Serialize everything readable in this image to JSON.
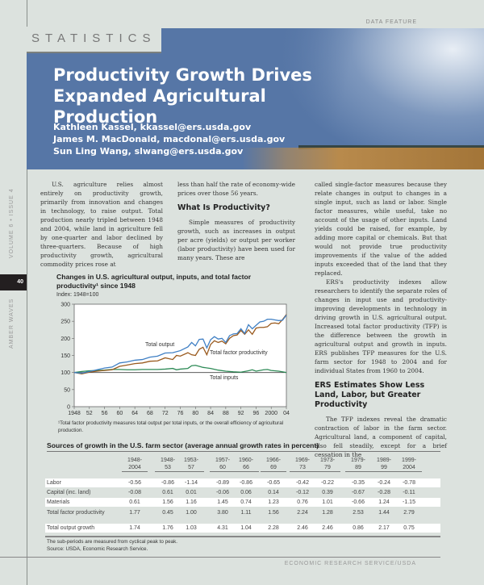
{
  "header": {
    "section": "STATISTICS",
    "kicker": "DATA FEATURE",
    "title": "Productivity Growth Drives Expanded Agricultural Production",
    "authors": [
      "Kathleen Kassel, kkassel@ers.usda.gov",
      "James M. MacDonald, macdonal@ers.usda.gov",
      "Sun Ling Wang, slwang@ers.usda.gov"
    ]
  },
  "sidebar": {
    "issue": "VOLUME 6 • ISSUE 4",
    "page": "40",
    "magazine": "AMBER WAVES"
  },
  "body": {
    "col1": [
      "U.S. agriculture relies almost entirely on productivity growth, primarily from innovation and changes in technology, to raise output. Total production nearly tripled between 1948 and 2004, while land in agriculture fell by one-quarter and labor declined by three-quarters. Because of high productivity growth, agricultural commodity prices rose at"
    ],
    "col2_p1": "less than half the rate of economy-wide prices over those 56 years.",
    "col2_h": "What Is Productivity?",
    "col2_p2": "Simple measures of productivity growth, such as increases in output per acre (yields) or output per worker (labor productivity) have been used for many years. These are",
    "col3_p1": "called single-factor measures because they relate changes in output to changes in a single input, such as land or labor. Single factor measures, while useful, take no account of the usage of other inputs. Land yields could be raised, for example, by adding more capital or chemicals. But that would not provide true productivity improvements if the value of the added inputs exceeded that of the land that they replaced.",
    "col3_p2": "ERS's productivity indexes allow researchers to identify the separate roles of changes in input use and productivity-improving developments in technology in driving growth in U.S. agricultural output. Increased total factor productivity (TFP) is the difference between the growth in agricultural output and growth in inputs. ERS publishes TFP measures for the U.S. farm sector for 1948 to 2004 and for individual States from 1960 to 2004.",
    "col3_h": "ERS Estimates Show Less Land, Labor, but Greater Productivity",
    "col3_p3": "The TFP indexes reveal the dramatic contraction of labor in the farm sector. Agricultural land, a component of capital, also fell steadily, except for a brief cessation in the"
  },
  "chart_data": {
    "type": "line",
    "title": "Changes in U.S. agricultural output, inputs, and total factor productivity¹ since 1948",
    "ylabel": "Index: 1948=100",
    "ylim": [
      0,
      300
    ],
    "yticks": [
      "0",
      "50",
      "100",
      "150",
      "200",
      "250",
      "300"
    ],
    "xlim": [
      1948,
      2004
    ],
    "xticks": [
      "1948",
      "52",
      "56",
      "60",
      "64",
      "68",
      "72",
      "76",
      "80",
      "84",
      "88",
      "92",
      "96",
      "2000",
      "04"
    ],
    "footnote": "¹Total factor productivity measures total output per total inputs, or the overall efficiency of agricultural production.",
    "series": [
      {
        "name": "Total output",
        "color": "#3f7fc4",
        "points": [
          [
            1948,
            100
          ],
          [
            1950,
            98
          ],
          [
            1952,
            103
          ],
          [
            1954,
            108
          ],
          [
            1956,
            113
          ],
          [
            1958,
            116
          ],
          [
            1960,
            128
          ],
          [
            1962,
            131
          ],
          [
            1964,
            136
          ],
          [
            1966,
            138
          ],
          [
            1968,
            145
          ],
          [
            1970,
            148
          ],
          [
            1972,
            157
          ],
          [
            1974,
            158
          ],
          [
            1976,
            164
          ],
          [
            1978,
            175
          ],
          [
            1979,
            188
          ],
          [
            1980,
            178
          ],
          [
            1981,
            197
          ],
          [
            1982,
            198
          ],
          [
            1983,
            172
          ],
          [
            1984,
            196
          ],
          [
            1985,
            205
          ],
          [
            1986,
            198
          ],
          [
            1987,
            200
          ],
          [
            1988,
            188
          ],
          [
            1989,
            208
          ],
          [
            1990,
            213
          ],
          [
            1991,
            214
          ],
          [
            1992,
            228
          ],
          [
            1993,
            214
          ],
          [
            1994,
            240
          ],
          [
            1995,
            228
          ],
          [
            1996,
            238
          ],
          [
            1997,
            248
          ],
          [
            1998,
            250
          ],
          [
            1999,
            256
          ],
          [
            2000,
            256
          ],
          [
            2001,
            254
          ],
          [
            2002,
            252
          ],
          [
            2003,
            253
          ],
          [
            2004,
            268
          ]
        ]
      },
      {
        "name": "Total factor productivity",
        "color": "#9a5a1e",
        "points": [
          [
            1948,
            100
          ],
          [
            1950,
            96
          ],
          [
            1952,
            101
          ],
          [
            1954,
            104
          ],
          [
            1956,
            106
          ],
          [
            1958,
            108
          ],
          [
            1960,
            118
          ],
          [
            1962,
            122
          ],
          [
            1964,
            126
          ],
          [
            1966,
            128
          ],
          [
            1968,
            133
          ],
          [
            1970,
            134
          ],
          [
            1972,
            143
          ],
          [
            1974,
            138
          ],
          [
            1975,
            150
          ],
          [
            1976,
            148
          ],
          [
            1978,
            158
          ],
          [
            1979,
            152
          ],
          [
            1980,
            150
          ],
          [
            1981,
            168
          ],
          [
            1982,
            174
          ],
          [
            1983,
            152
          ],
          [
            1984,
            182
          ],
          [
            1985,
            193
          ],
          [
            1986,
            188
          ],
          [
            1987,
            192
          ],
          [
            1988,
            184
          ],
          [
            1989,
            200
          ],
          [
            1990,
            208
          ],
          [
            1991,
            210
          ],
          [
            1992,
            223
          ],
          [
            1993,
            212
          ],
          [
            1994,
            225
          ],
          [
            1995,
            212
          ],
          [
            1996,
            230
          ],
          [
            1997,
            232
          ],
          [
            1998,
            232
          ],
          [
            1999,
            234
          ],
          [
            2000,
            244
          ],
          [
            2001,
            245
          ],
          [
            2002,
            243
          ],
          [
            2003,
            255
          ],
          [
            2004,
            270
          ]
        ]
      },
      {
        "name": "Total inputs",
        "color": "#2e8b57",
        "points": [
          [
            1948,
            100
          ],
          [
            1950,
            103
          ],
          [
            1952,
            105
          ],
          [
            1954,
            106
          ],
          [
            1956,
            107
          ],
          [
            1958,
            109
          ],
          [
            1960,
            109
          ],
          [
            1962,
            108
          ],
          [
            1964,
            108
          ],
          [
            1966,
            109
          ],
          [
            1968,
            109
          ],
          [
            1970,
            109
          ],
          [
            1972,
            110
          ],
          [
            1974,
            112
          ],
          [
            1975,
            108
          ],
          [
            1976,
            110
          ],
          [
            1978,
            112
          ],
          [
            1979,
            120
          ],
          [
            1980,
            121
          ],
          [
            1981,
            118
          ],
          [
            1982,
            115
          ],
          [
            1984,
            112
          ],
          [
            1986,
            107
          ],
          [
            1988,
            104
          ],
          [
            1990,
            102
          ],
          [
            1992,
            101
          ],
          [
            1994,
            105
          ],
          [
            1995,
            108
          ],
          [
            1996,
            104
          ],
          [
            1998,
            108
          ],
          [
            1999,
            109
          ],
          [
            2000,
            106
          ],
          [
            2002,
            104
          ],
          [
            2004,
            100
          ]
        ]
      }
    ]
  },
  "table": {
    "title": "Sources of growth in the U.S. farm sector (average annual growth rates in percent)",
    "columns": [
      [
        "1948-",
        "2004"
      ],
      [
        "1948-",
        "53"
      ],
      [
        "1953-",
        "57"
      ],
      [
        "1957-",
        "60"
      ],
      [
        "1960-",
        "66"
      ],
      [
        "1966-",
        "69"
      ],
      [
        "1969-",
        "73"
      ],
      [
        "1973-",
        "79"
      ],
      [
        "1979-",
        "89"
      ],
      [
        "1989-",
        "99"
      ],
      [
        "1999-",
        "2004"
      ]
    ],
    "rows": [
      {
        "label": "Labor",
        "values": [
          "-0.56",
          "-0.86",
          "-1.14",
          "-0.89",
          "-0.86",
          "-0.65",
          "-0.42",
          "-0.22",
          "-0.35",
          "-0.24",
          "-0.78"
        ]
      },
      {
        "label": "Capital (inc. land)",
        "values": [
          "-0.08",
          "0.61",
          "0.01",
          "-0.06",
          "0.06",
          "0.14",
          "-0.12",
          "0.39",
          "-0.67",
          "-0.28",
          "-0.11"
        ]
      },
      {
        "label": "Materials",
        "values": [
          "0.61",
          "1.56",
          "1.16",
          "1.45",
          "0.74",
          "1.23",
          "0.76",
          "1.01",
          "-0.66",
          "1.24",
          "-1.15"
        ]
      },
      {
        "label": "Total factor productivity",
        "values": [
          "1.77",
          "0.45",
          "1.00",
          "3.80",
          "1.11",
          "1.56",
          "2.24",
          "1.28",
          "2.53",
          "1.44",
          "2.79"
        ]
      },
      {
        "label": "Total output growth",
        "values": [
          "1.74",
          "1.76",
          "1.03",
          "4.31",
          "1.04",
          "2.28",
          "2.46",
          "2.46",
          "0.86",
          "2.17",
          "0.75"
        ]
      }
    ],
    "notes": [
      "The sub-periods are measured from cyclical peak to peak.",
      "Source:  USDA, Economic Research Service."
    ]
  },
  "footer": "ECONOMIC RESEARCH SERVICE/USDA"
}
